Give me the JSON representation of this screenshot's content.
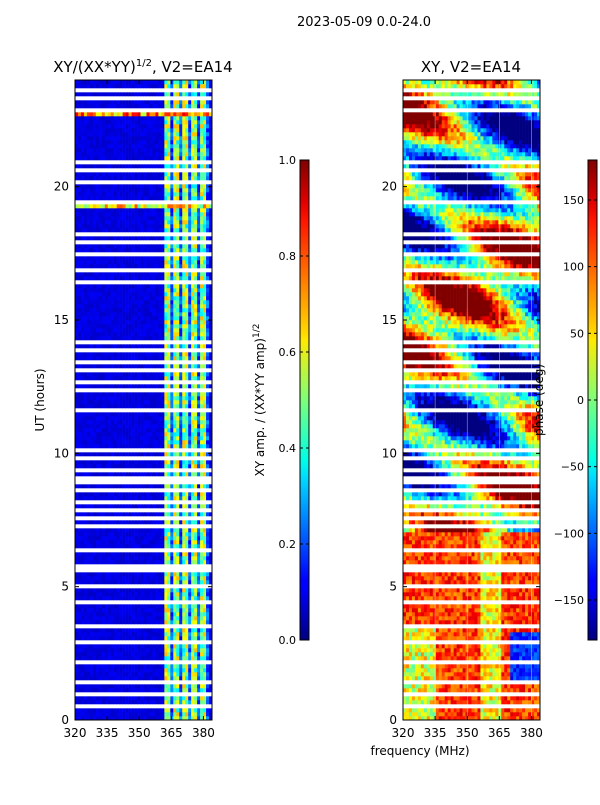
{
  "page_title": "2023-05-09 0.0-24.0",
  "xlabel": "frequency (MHz)",
  "ylabel": "UT (hours)",
  "chart_data": [
    {
      "type": "heatmap",
      "title": "XY/(XX*YY)",
      "title_sup": "1/2",
      "title_suffix": ", V2=EA14",
      "x": [
        320,
        384
      ],
      "xticks": [
        320,
        335,
        350,
        365,
        380
      ],
      "y": [
        0,
        24
      ],
      "yticks": [
        0,
        5,
        10,
        15,
        20
      ],
      "colorbar": {
        "label": "XY amp. / (XX*YY amp)",
        "label_sup": "1/2",
        "range": [
          0.0,
          1.0
        ],
        "ticks": [
          "0.0",
          "0.2",
          "0.4",
          "0.6",
          "0.8",
          "1.0"
        ],
        "colormap": "jet"
      },
      "description": "normalized cross-correlation amplitude, mostly ~0.1 with brighter (0.3-0.7) channels near 362-382 MHz"
    },
    {
      "type": "heatmap",
      "title": "XY, V2=EA14",
      "x": [
        320,
        384
      ],
      "xticks": [
        320,
        335,
        350,
        365,
        380
      ],
      "y": [
        0,
        24
      ],
      "yticks": [
        0,
        5,
        10,
        15,
        20
      ],
      "colorbar": {
        "label": "phase (deg)",
        "range": [
          -180,
          180
        ],
        "ticks": [
          "−150",
          "−100",
          "−50",
          "0",
          "50",
          "100",
          "150"
        ],
        "colormap": "jet"
      },
      "description": "cross-correlation phase, warm (60-160 deg) at low UT, mixed structure at higher UT"
    }
  ],
  "colors": {
    "background": "#ffffff",
    "flag_gap": "#ffffff"
  }
}
